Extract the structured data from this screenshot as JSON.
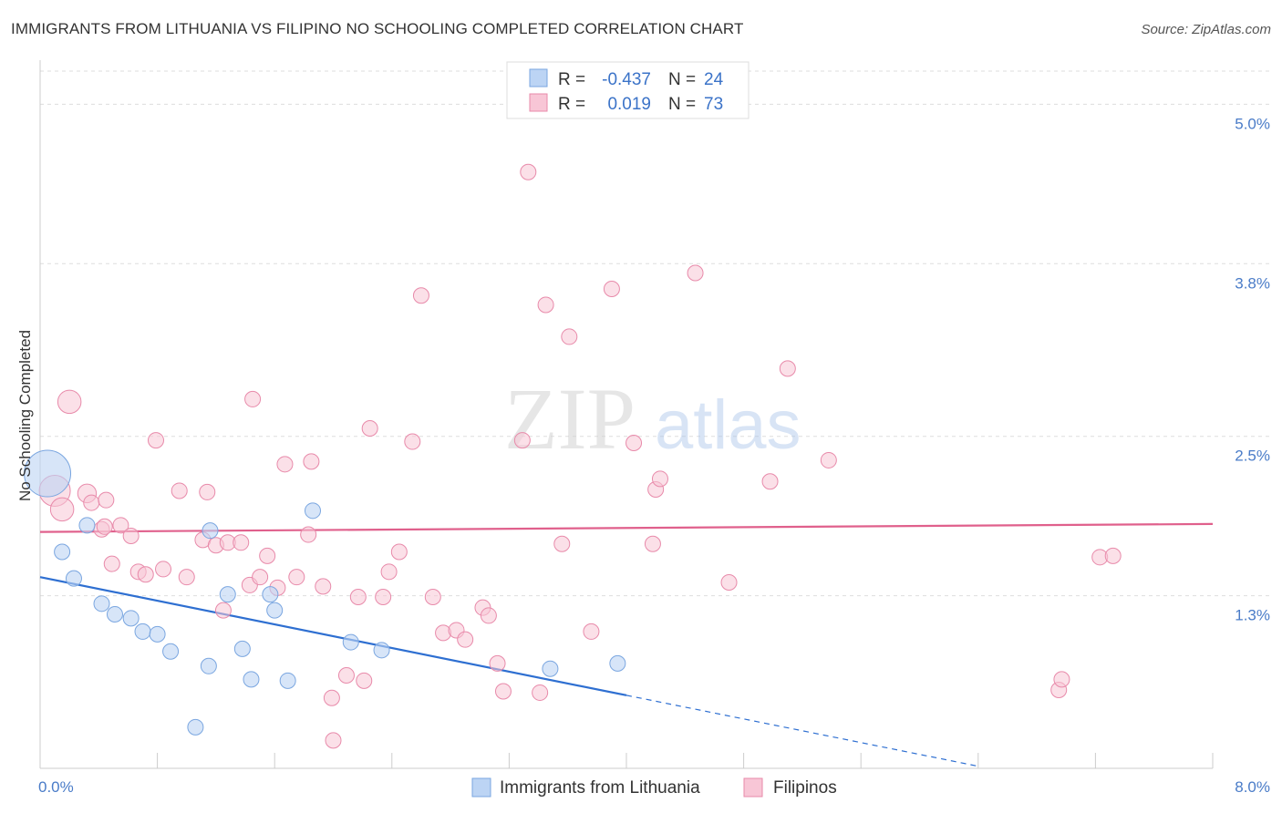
{
  "title": "IMMIGRANTS FROM LITHUANIA VS FILIPINO NO SCHOOLING COMPLETED CORRELATION CHART",
  "source": "Source: ZipAtlas.com",
  "watermark": {
    "zip": "ZIP",
    "atlas": "atlas"
  },
  "colors": {
    "blue_fill": "#bcd4f4",
    "blue_stroke": "#7aa6e0",
    "blue_line": "#2e6fd1",
    "pink_fill": "#f8c6d6",
    "pink_stroke": "#e88aaa",
    "pink_line": "#e0608c",
    "tick_text": "#4a7cc8",
    "grid": "#dddddd"
  },
  "legend": {
    "rows": [
      {
        "r_label": "R =",
        "r_value": "-0.437",
        "n_label": "N =",
        "n_value": "24"
      },
      {
        "r_label": "R =",
        "r_value": "0.019",
        "n_label": "N =",
        "n_value": "73"
      }
    ]
  },
  "chart_data": {
    "type": "scatter",
    "title": "IMMIGRANTS FROM LITHUANIA VS FILIPINO NO SCHOOLING COMPLETED CORRELATION CHART",
    "xlabel": "",
    "ylabel": "No Schooling Completed",
    "xlim": [
      0,
      8.0
    ],
    "ylim": [
      0,
      5.25
    ],
    "x_tick_labels": [
      {
        "value": 0,
        "label": "0.0%"
      },
      {
        "value": 8.0,
        "label": "8.0%"
      }
    ],
    "y_tick_labels": [
      {
        "value": 1.3,
        "label": "1.3%"
      },
      {
        "value": 2.5,
        "label": "2.5%"
      },
      {
        "value": 3.8,
        "label": "3.8%"
      },
      {
        "value": 5.0,
        "label": "5.0%"
      }
    ],
    "grid": true,
    "legend_position": "bottom-center",
    "series": [
      {
        "name": "Immigrants from Lithuania",
        "color": "blue",
        "trend": {
          "x0": 0.0,
          "y0": 1.44,
          "x1": 4.0,
          "y1": 0.55,
          "dash_to_x": 6.4
        },
        "points": [
          [
            0.05,
            2.22,
            3.0
          ],
          [
            0.15,
            1.63,
            1
          ],
          [
            0.23,
            1.43,
            1
          ],
          [
            0.32,
            1.83,
            1
          ],
          [
            0.42,
            1.24,
            1
          ],
          [
            0.51,
            1.16,
            1
          ],
          [
            0.62,
            1.13,
            1
          ],
          [
            0.7,
            1.03,
            1
          ],
          [
            0.8,
            1.01,
            1
          ],
          [
            0.89,
            0.88,
            1
          ],
          [
            1.06,
            0.31,
            1
          ],
          [
            1.16,
            1.79,
            1
          ],
          [
            1.15,
            0.77,
            1
          ],
          [
            1.28,
            1.31,
            1
          ],
          [
            1.38,
            0.9,
            1
          ],
          [
            1.44,
            0.67,
            1
          ],
          [
            1.57,
            1.31,
            1
          ],
          [
            1.6,
            1.19,
            1
          ],
          [
            1.69,
            0.66,
            1
          ],
          [
            1.86,
            1.94,
            1
          ],
          [
            2.12,
            0.95,
            1
          ],
          [
            2.33,
            0.89,
            1
          ],
          [
            3.48,
            0.75,
            1
          ],
          [
            3.94,
            0.79,
            1
          ]
        ]
      },
      {
        "name": "Filipinos",
        "color": "pink",
        "trend": {
          "x0": 0.0,
          "y0": 1.78,
          "x1": 8.0,
          "y1": 1.84
        },
        "points": [
          [
            0.1,
            2.09,
            2.0
          ],
          [
            0.15,
            1.95,
            1.5
          ],
          [
            0.2,
            2.76,
            1.5
          ],
          [
            0.32,
            2.07,
            1.2
          ],
          [
            0.35,
            2.0,
            1
          ],
          [
            0.42,
            1.8,
            1
          ],
          [
            0.44,
            1.82,
            1
          ],
          [
            0.49,
            1.54,
            1
          ],
          [
            0.55,
            1.83,
            1
          ],
          [
            0.62,
            1.75,
            1
          ],
          [
            0.67,
            1.48,
            1
          ],
          [
            0.72,
            1.46,
            1
          ],
          [
            0.79,
            2.47,
            1
          ],
          [
            0.84,
            1.5,
            1
          ],
          [
            0.95,
            2.09,
            1
          ],
          [
            1.0,
            1.44,
            1
          ],
          [
            1.11,
            1.72,
            1
          ],
          [
            1.14,
            2.08,
            1
          ],
          [
            1.2,
            1.68,
            1
          ],
          [
            1.25,
            1.19,
            1
          ],
          [
            1.28,
            1.7,
            1
          ],
          [
            1.37,
            1.7,
            1
          ],
          [
            1.43,
            1.38,
            1
          ],
          [
            1.45,
            2.78,
            1
          ],
          [
            1.5,
            1.44,
            1
          ],
          [
            1.55,
            1.6,
            1
          ],
          [
            1.62,
            1.36,
            1
          ],
          [
            1.67,
            2.29,
            1
          ],
          [
            1.75,
            1.44,
            1
          ],
          [
            1.83,
            1.76,
            1
          ],
          [
            1.85,
            2.31,
            1
          ],
          [
            1.93,
            1.37,
            1
          ],
          [
            1.99,
            0.53,
            1
          ],
          [
            2.0,
            0.21,
            1
          ],
          [
            2.09,
            0.7,
            1
          ],
          [
            2.17,
            1.29,
            1
          ],
          [
            2.21,
            0.66,
            1
          ],
          [
            2.25,
            2.56,
            1
          ],
          [
            2.34,
            1.29,
            1
          ],
          [
            2.38,
            1.48,
            1
          ],
          [
            2.45,
            1.63,
            1
          ],
          [
            2.54,
            2.46,
            1
          ],
          [
            2.6,
            3.56,
            1
          ],
          [
            2.68,
            1.29,
            1
          ],
          [
            2.75,
            1.02,
            1
          ],
          [
            2.84,
            1.04,
            1
          ],
          [
            2.9,
            0.97,
            1
          ],
          [
            3.02,
            1.21,
            1
          ],
          [
            3.06,
            1.15,
            1
          ],
          [
            3.12,
            0.79,
            1
          ],
          [
            3.16,
            0.58,
            1
          ],
          [
            3.29,
            2.47,
            1
          ],
          [
            3.33,
            4.49,
            1
          ],
          [
            3.41,
            0.57,
            1
          ],
          [
            3.45,
            3.49,
            1
          ],
          [
            3.56,
            1.69,
            1
          ],
          [
            3.61,
            3.25,
            1
          ],
          [
            3.76,
            1.03,
            1
          ],
          [
            3.9,
            3.61,
            1
          ],
          [
            4.05,
            2.45,
            1
          ],
          [
            4.18,
            1.69,
            1
          ],
          [
            4.2,
            2.1,
            1
          ],
          [
            4.23,
            2.18,
            1
          ],
          [
            4.47,
            3.73,
            1
          ],
          [
            4.7,
            1.4,
            1
          ],
          [
            4.98,
            2.16,
            1
          ],
          [
            5.1,
            3.01,
            1
          ],
          [
            5.38,
            2.32,
            1
          ],
          [
            7.23,
            1.59,
            1
          ],
          [
            7.32,
            1.6,
            1
          ],
          [
            6.95,
            0.59,
            1
          ],
          [
            6.97,
            0.67,
            1
          ],
          [
            0.45,
            2.02,
            1
          ]
        ]
      }
    ]
  }
}
